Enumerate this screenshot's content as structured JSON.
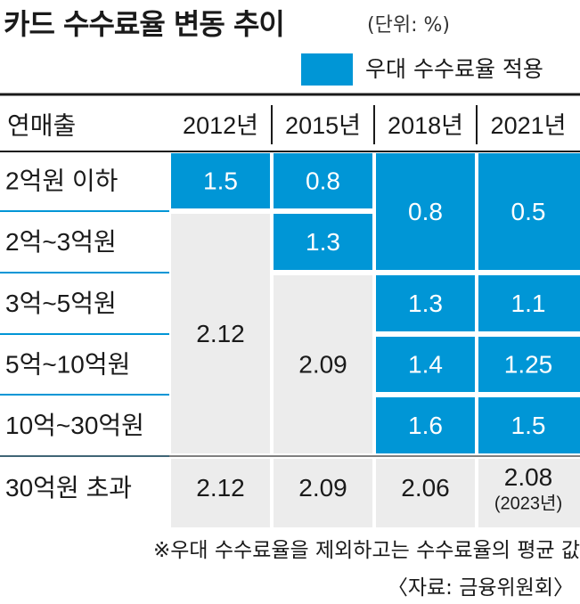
{
  "header": {
    "title": "카드 수수료율 변동 추이",
    "unit": "(단위: %)"
  },
  "legend": {
    "label": "우대 수수료율 적용",
    "color": "#0096d6"
  },
  "chart_data": {
    "type": "table",
    "corner_label": "연매출",
    "columns": [
      "2012년",
      "2015년",
      "2018년",
      "2021년"
    ],
    "rows": [
      "2억원 이하",
      "2억~3억원",
      "3억~5억원",
      "5억~10억원",
      "10억~30억원",
      "30억원 초과"
    ],
    "cells": [
      {
        "col": 0,
        "row_start": 0,
        "row_end": 0,
        "value": "1.5",
        "preferential": true
      },
      {
        "col": 0,
        "row_start": 1,
        "row_end": 4,
        "value": "2.12",
        "preferential": false
      },
      {
        "col": 0,
        "row_start": 5,
        "row_end": 5,
        "value": "2.12",
        "preferential": false
      },
      {
        "col": 1,
        "row_start": 0,
        "row_end": 0,
        "value": "0.8",
        "preferential": true
      },
      {
        "col": 1,
        "row_start": 1,
        "row_end": 1,
        "value": "1.3",
        "preferential": true
      },
      {
        "col": 1,
        "row_start": 2,
        "row_end": 4,
        "value": "2.09",
        "preferential": false
      },
      {
        "col": 1,
        "row_start": 5,
        "row_end": 5,
        "value": "2.09",
        "preferential": false
      },
      {
        "col": 2,
        "row_start": 0,
        "row_end": 1,
        "value": "0.8",
        "preferential": true
      },
      {
        "col": 2,
        "row_start": 2,
        "row_end": 2,
        "value": "1.3",
        "preferential": true
      },
      {
        "col": 2,
        "row_start": 3,
        "row_end": 3,
        "value": "1.4",
        "preferential": true
      },
      {
        "col": 2,
        "row_start": 4,
        "row_end": 4,
        "value": "1.6",
        "preferential": true
      },
      {
        "col": 2,
        "row_start": 5,
        "row_end": 5,
        "value": "2.06",
        "preferential": false
      },
      {
        "col": 3,
        "row_start": 0,
        "row_end": 1,
        "value": "0.5",
        "preferential": true
      },
      {
        "col": 3,
        "row_start": 2,
        "row_end": 2,
        "value": "1.1",
        "preferential": true
      },
      {
        "col": 3,
        "row_start": 3,
        "row_end": 3,
        "value": "1.25",
        "preferential": true
      },
      {
        "col": 3,
        "row_start": 4,
        "row_end": 4,
        "value": "1.5",
        "preferential": true
      },
      {
        "col": 3,
        "row_start": 5,
        "row_end": 5,
        "value": "2.08",
        "note": "(2023년)",
        "preferential": false
      }
    ]
  },
  "colors": {
    "preferential": "#0096d6",
    "regular": "#ececec",
    "row_rule": "#0096d6",
    "header_rule": "#1a1a1a"
  },
  "footer": {
    "footnote": "※우대 수수료율을 제외하고는 수수료율의 평균 값",
    "source": "〈자료: 금융위원회〉"
  }
}
